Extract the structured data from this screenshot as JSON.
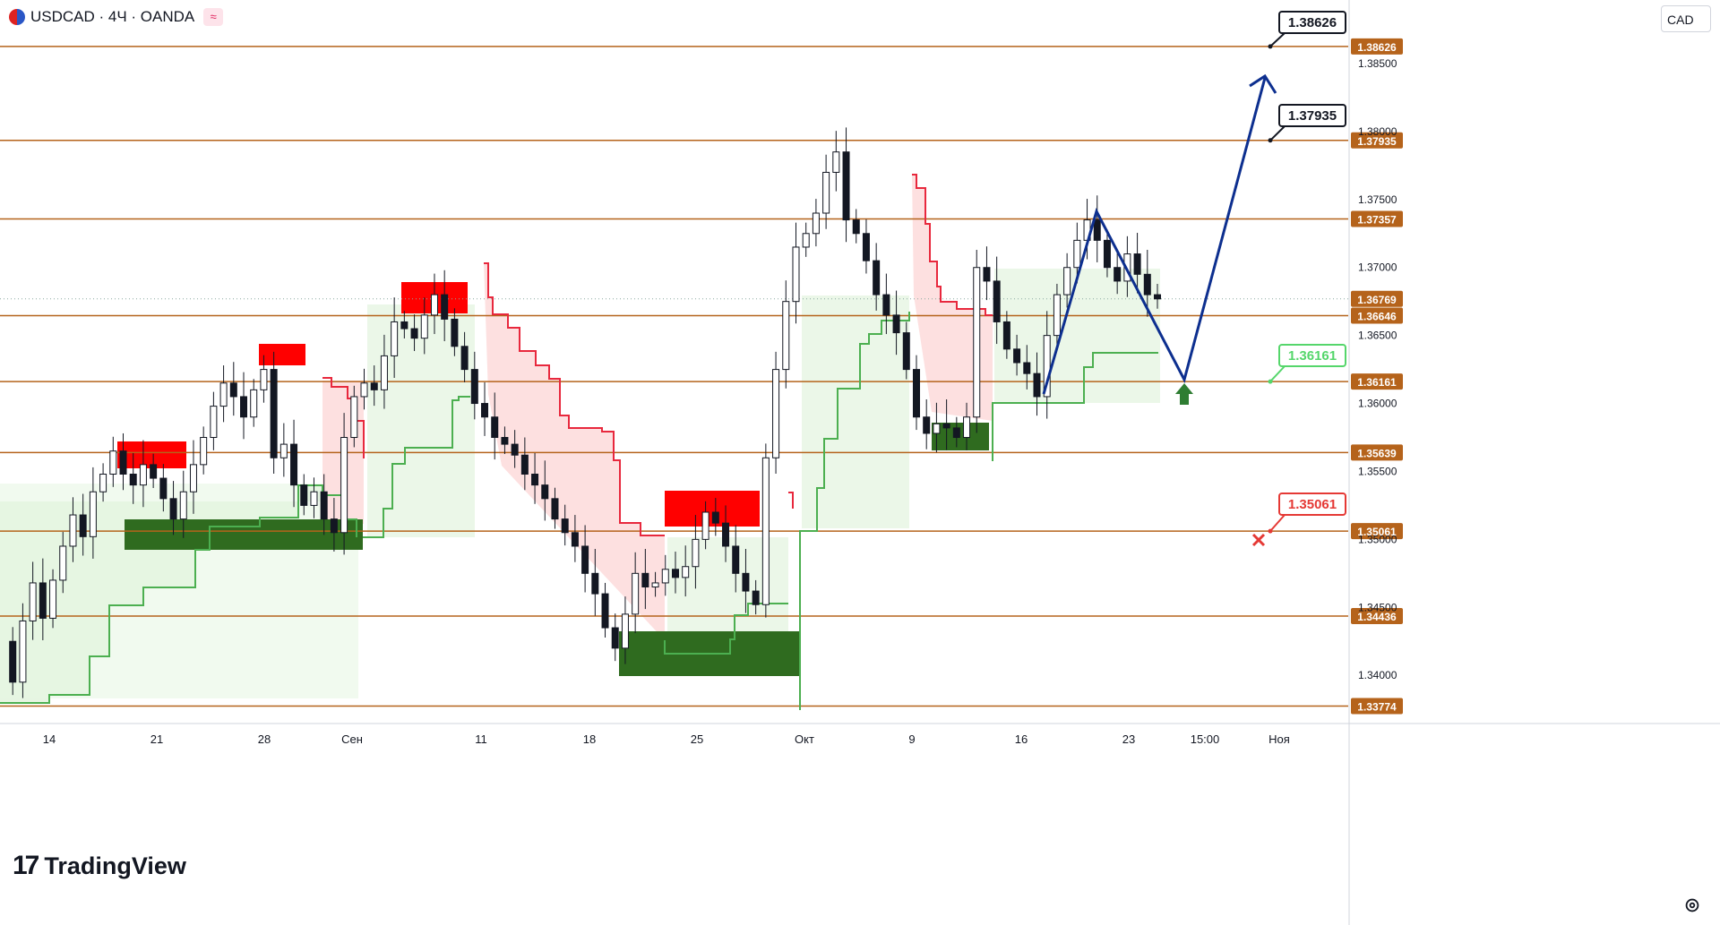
{
  "header": {
    "symbol_line": "USDCAD · 4Ч · OANDA",
    "wave_icon": "wave-icon",
    "flag_icon": "us-ca-flag-icon"
  },
  "currency_button": "CAD",
  "logo": {
    "text": "TradingView",
    "mark": "17"
  },
  "colors": {
    "level_line": "#b5631b",
    "bear_zone": "#ff0000",
    "bull_zone": "#2f6b1f",
    "trail_red": "#e8283d",
    "trail_green": "#4caf50",
    "fill_red": "#fde0e0",
    "fill_green": "#e6f5e2",
    "candle_body": "#131722",
    "forecast_line": "#0d2f8f",
    "target_green": "#2e7d32",
    "target_red": "#e53935"
  },
  "chart_data": {
    "type": "candlestick",
    "symbol": "USDCAD",
    "timeframe": "4Ч",
    "source": "OANDA",
    "price_axis": {
      "ticks": [
        "1.38500",
        "1.38000",
        "1.37500",
        "1.37000",
        "1.36500",
        "1.36000",
        "1.35500",
        "1.35000",
        "1.34500",
        "1.34000"
      ]
    },
    "time_axis": {
      "ticks": [
        "14",
        "21",
        "28",
        "Сен",
        "11",
        "18",
        "25",
        "Окт",
        "9",
        "16",
        "23",
        "15:00",
        "Ноя"
      ]
    },
    "current_price": "1.36769",
    "levels": [
      {
        "label": "1.38626",
        "value": 1.38626
      },
      {
        "label": "1.37935",
        "value": 1.37935
      },
      {
        "label": "1.37357",
        "value": 1.37357
      },
      {
        "label": "1.36646",
        "value": 1.36646
      },
      {
        "label": "1.36161",
        "value": 1.36161
      },
      {
        "label": "1.35639",
        "value": 1.35639
      },
      {
        "label": "1.35061",
        "value": 1.35061
      },
      {
        "label": "1.34436",
        "value": 1.34436
      },
      {
        "label": "1.33774",
        "value": 1.33774
      }
    ],
    "callouts": [
      {
        "label": "1.38626",
        "style": "black"
      },
      {
        "label": "1.37935",
        "style": "black"
      },
      {
        "label": "1.36161",
        "style": "green"
      },
      {
        "label": "1.35061",
        "style": "red"
      }
    ],
    "series_path": [
      1.3425,
      1.3395,
      1.344,
      1.3468,
      1.3442,
      1.347,
      1.3495,
      1.3518,
      1.3502,
      1.3535,
      1.3548,
      1.3565,
      1.3548,
      1.354,
      1.3555,
      1.3545,
      1.353,
      1.3515,
      1.3535,
      1.3555,
      1.3575,
      1.3598,
      1.3615,
      1.3605,
      1.359,
      1.361,
      1.3625,
      1.356,
      1.357,
      1.354,
      1.3525,
      1.3535,
      1.3515,
      1.3505,
      1.3575,
      1.3605,
      1.3615,
      1.361,
      1.3635,
      1.366,
      1.3655,
      1.3648,
      1.3665,
      1.368,
      1.3662,
      1.3642,
      1.3625,
      1.36,
      1.359,
      1.3575,
      1.357,
      1.3562,
      1.3548,
      1.354,
      1.353,
      1.3515,
      1.3505,
      1.3495,
      1.3475,
      1.346,
      1.3435,
      1.342,
      1.3445,
      1.3475,
      1.3465,
      1.3468,
      1.3478,
      1.3472,
      1.348,
      1.35,
      1.352,
      1.3512,
      1.3495,
      1.3475,
      1.3462,
      1.3452,
      1.356,
      1.3625,
      1.3675,
      1.3715,
      1.3725,
      1.374,
      1.377,
      1.3785,
      1.3735,
      1.3725,
      1.3705,
      1.368,
      1.3665,
      1.3652,
      1.3625,
      1.359,
      1.3578,
      1.3585,
      1.3582,
      1.3575,
      1.359,
      1.37,
      1.369,
      1.366,
      1.364,
      1.363,
      1.3622,
      1.3605,
      1.365,
      1.368,
      1.37,
      1.372,
      1.3735,
      1.372,
      1.37,
      1.369,
      1.371,
      1.3695,
      1.368,
      1.36769
    ]
  }
}
